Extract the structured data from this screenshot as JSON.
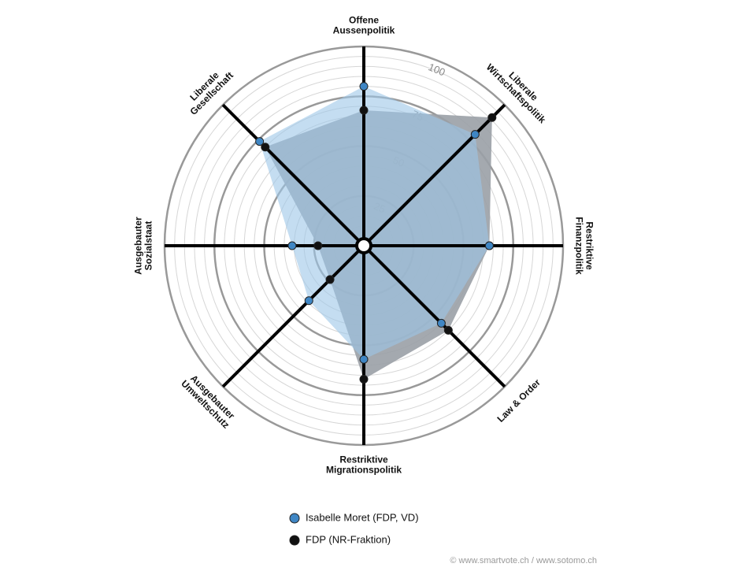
{
  "chart_data": {
    "type": "radar",
    "categories": [
      [
        "Offene",
        "Aussenpolitik"
      ],
      [
        "Liberale",
        "Wirtschaftspolitik"
      ],
      [
        "Restriktive",
        "Finanzpolitik"
      ],
      [
        "Law & Order"
      ],
      [
        "Restriktive",
        "Migrationspolitik"
      ],
      [
        "Ausgebauter",
        "Umweltschutz"
      ],
      [
        "Ausgebauter",
        "Sozialstaat"
      ],
      [
        "Liberale",
        "Gesellschaft"
      ]
    ],
    "series": [
      {
        "name": "FDP (NR-Fraktion)",
        "color": "#111111",
        "fill": "#9aa0a6",
        "values": [
          68,
          91,
          63,
          60,
          67,
          24,
          23,
          70
        ]
      },
      {
        "name": "Isabelle Moret (FDP, VD)",
        "color": "#3f86c4",
        "fill": "#9cc6e8",
        "values": [
          80,
          79,
          63,
          55,
          57,
          39,
          36,
          74
        ]
      }
    ],
    "rlim": [
      0,
      100
    ],
    "rticks": [
      25,
      50,
      75,
      100
    ],
    "minor_grid_step": 5,
    "source": "© www.smartvote.ch / www.sotomo.ch"
  }
}
